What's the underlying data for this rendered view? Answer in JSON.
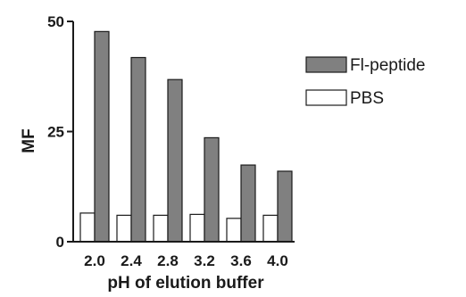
{
  "chart_data": {
    "type": "bar",
    "categories": [
      "2.0",
      "2.4",
      "2.8",
      "3.2",
      "3.6",
      "4.0"
    ],
    "series": [
      {
        "name": "PBS",
        "values": [
          6.5,
          6.0,
          6.0,
          6.2,
          5.3,
          6.0
        ],
        "color": "#ffffff"
      },
      {
        "name": "Fl-peptide",
        "values": [
          47.7,
          41.8,
          36.8,
          23.6,
          17.4,
          16.0
        ],
        "color": "#808080"
      }
    ],
    "xlabel": "pH of elution buffer",
    "ylabel": "MF",
    "ylim": [
      0,
      50
    ],
    "yticks": [
      "0",
      "25",
      "50"
    ],
    "grid": false,
    "legend": "right"
  }
}
